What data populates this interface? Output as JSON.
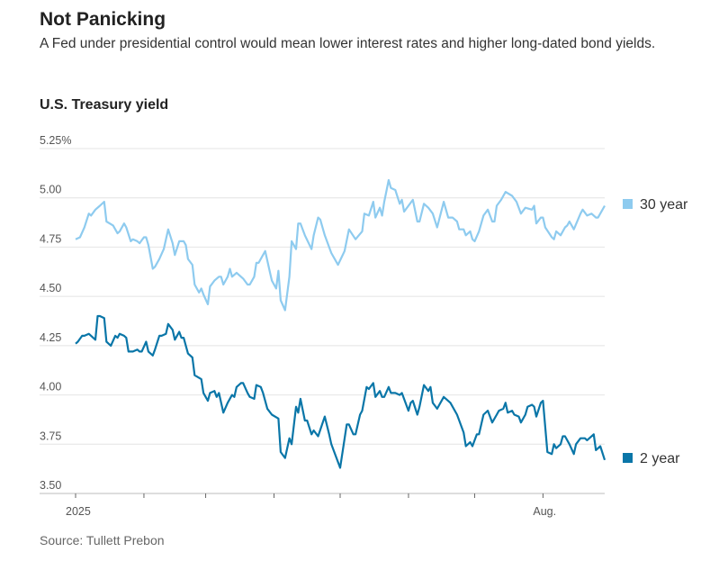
{
  "header": {
    "title": "Not Panicking",
    "subtitle": "A Fed under presidential control would mean lower interest rates and higher long-dated bond yields."
  },
  "source": "Source: Tullett Prebon",
  "chart_data": {
    "type": "line",
    "title": "U.S. Treasury yield",
    "xlabel": "",
    "ylabel": "",
    "x_unit": "days since Jan 1, 2025",
    "xlim": [
      0,
      240
    ],
    "ylim": [
      3.5,
      5.25
    ],
    "y_ticks": [
      {
        "v": 5.25,
        "label": "5.25%"
      },
      {
        "v": 5.0,
        "label": "5.00"
      },
      {
        "v": 4.75,
        "label": "4.75"
      },
      {
        "v": 4.5,
        "label": "4.50"
      },
      {
        "v": 4.25,
        "label": "4.25"
      },
      {
        "v": 4.0,
        "label": "4.00"
      },
      {
        "v": 3.75,
        "label": "3.75"
      },
      {
        "v": 3.5,
        "label": "3.50"
      }
    ],
    "x_ticks": [
      {
        "d": 0,
        "label": "2025"
      },
      {
        "d": 31,
        "label": ""
      },
      {
        "d": 59,
        "label": ""
      },
      {
        "d": 90,
        "label": ""
      },
      {
        "d": 120,
        "label": ""
      },
      {
        "d": 151,
        "label": ""
      },
      {
        "d": 181,
        "label": ""
      },
      {
        "d": 212,
        "label": "Aug."
      }
    ],
    "grid": true,
    "legend": "right, at line ends",
    "series": [
      {
        "name": "30 year",
        "color": "#8ecbef",
        "x": [
          0,
          2,
          4,
          6,
          7,
          9,
          11,
          13,
          14,
          17,
          19,
          20,
          22,
          23,
          25,
          26,
          28,
          29,
          31,
          32,
          33,
          35,
          36,
          38,
          40,
          42,
          44,
          45,
          47,
          49,
          50,
          51,
          53,
          54,
          56,
          57,
          58,
          60,
          61,
          63,
          65,
          66,
          67,
          69,
          70,
          71,
          73,
          75,
          76,
          78,
          79,
          81,
          82,
          83,
          86,
          88,
          89,
          91,
          92,
          93,
          95,
          97,
          98,
          100,
          101,
          102,
          104,
          107,
          108,
          110,
          111,
          113,
          116,
          119,
          122,
          124,
          127,
          130,
          131,
          133,
          135,
          136,
          138,
          139,
          140,
          142,
          143,
          145,
          147,
          148,
          149,
          153,
          155,
          156,
          158,
          160,
          162,
          164,
          167,
          169,
          171,
          173,
          174,
          176,
          177,
          179,
          180,
          181,
          183,
          185,
          187,
          189,
          190,
          191,
          193,
          195,
          198,
          200,
          202,
          204,
          207,
          208,
          209,
          211,
          212,
          213,
          216,
          217,
          218,
          220,
          222,
          223,
          224,
          226,
          229,
          230,
          232,
          234,
          236,
          237,
          240
        ],
        "y": [
          4.79,
          4.8,
          4.85,
          4.92,
          4.91,
          4.94,
          4.96,
          4.98,
          4.88,
          4.86,
          4.82,
          4.83,
          4.87,
          4.85,
          4.78,
          4.79,
          4.78,
          4.77,
          4.8,
          4.8,
          4.76,
          4.64,
          4.65,
          4.69,
          4.74,
          4.84,
          4.77,
          4.71,
          4.78,
          4.78,
          4.76,
          4.69,
          4.66,
          4.56,
          4.52,
          4.54,
          4.51,
          4.46,
          4.55,
          4.58,
          4.6,
          4.6,
          4.56,
          4.6,
          4.64,
          4.6,
          4.62,
          4.6,
          4.59,
          4.56,
          4.56,
          4.6,
          4.67,
          4.67,
          4.73,
          4.63,
          4.58,
          4.54,
          4.63,
          4.48,
          4.43,
          4.6,
          4.78,
          4.74,
          4.87,
          4.87,
          4.81,
          4.74,
          4.81,
          4.9,
          4.89,
          4.81,
          4.72,
          4.66,
          4.73,
          4.84,
          4.79,
          4.83,
          4.92,
          4.91,
          4.98,
          4.9,
          4.95,
          4.91,
          4.98,
          5.09,
          5.05,
          5.04,
          4.97,
          4.99,
          4.93,
          4.99,
          4.88,
          4.88,
          4.97,
          4.95,
          4.92,
          4.85,
          4.98,
          4.9,
          4.9,
          4.88,
          4.84,
          4.84,
          4.81,
          4.83,
          4.79,
          4.78,
          4.83,
          4.91,
          4.94,
          4.88,
          4.88,
          4.96,
          4.99,
          5.03,
          5.01,
          4.98,
          4.92,
          4.95,
          4.94,
          4.96,
          4.87,
          4.9,
          4.9,
          4.85,
          4.8,
          4.79,
          4.83,
          4.81,
          4.85,
          4.86,
          4.88,
          4.84,
          4.92,
          4.94,
          4.91,
          4.92,
          4.9,
          4.9,
          4.96
        ]
      },
      {
        "name": "2 year",
        "color": "#0a76a8",
        "x": [
          0,
          1,
          3,
          4,
          6,
          7,
          9,
          10,
          11,
          13,
          14,
          16,
          18,
          19,
          20,
          22,
          23,
          24,
          26,
          28,
          29,
          30,
          32,
          33,
          35,
          36,
          38,
          39,
          41,
          42,
          44,
          45,
          47,
          48,
          49,
          51,
          53,
          54,
          57,
          58,
          60,
          61,
          63,
          64,
          65,
          67,
          69,
          71,
          72,
          73,
          75,
          76,
          78,
          79,
          81,
          82,
          84,
          85,
          87,
          89,
          92,
          93,
          95,
          97,
          98,
          100,
          101,
          102,
          104,
          105,
          107,
          108,
          110,
          113,
          115,
          116,
          120,
          123,
          124,
          126,
          127,
          129,
          130,
          132,
          133,
          135,
          136,
          138,
          139,
          140,
          142,
          143,
          145,
          147,
          148,
          151,
          152,
          153,
          155,
          156,
          158,
          160,
          161,
          162,
          164,
          167,
          170,
          173,
          176,
          177,
          179,
          180,
          182,
          183,
          185,
          187,
          189,
          191,
          192,
          194,
          195,
          196,
          198,
          199,
          201,
          202,
          204,
          205,
          207,
          208,
          209,
          211,
          212,
          214,
          216,
          217,
          218,
          220,
          221,
          222,
          224,
          226,
          227,
          229,
          231,
          232,
          233,
          235,
          236,
          238,
          240
        ],
        "y": [
          4.26,
          4.27,
          4.3,
          4.3,
          4.31,
          4.3,
          4.28,
          4.4,
          4.4,
          4.39,
          4.27,
          4.25,
          4.3,
          4.29,
          4.31,
          4.3,
          4.29,
          4.22,
          4.22,
          4.23,
          4.22,
          4.22,
          4.27,
          4.22,
          4.2,
          4.23,
          4.3,
          4.3,
          4.31,
          4.36,
          4.33,
          4.28,
          4.32,
          4.29,
          4.29,
          4.21,
          4.19,
          4.1,
          4.08,
          4.01,
          3.97,
          4.01,
          4.02,
          3.99,
          4.01,
          3.91,
          3.96,
          4.0,
          3.99,
          4.04,
          4.06,
          4.06,
          4.01,
          3.99,
          3.98,
          4.05,
          4.04,
          4.01,
          3.93,
          3.9,
          3.88,
          3.71,
          3.68,
          3.78,
          3.75,
          3.94,
          3.91,
          3.98,
          3.87,
          3.87,
          3.8,
          3.82,
          3.79,
          3.89,
          3.8,
          3.75,
          3.63,
          3.85,
          3.85,
          3.8,
          3.8,
          3.9,
          3.92,
          4.04,
          4.03,
          4.06,
          3.99,
          4.02,
          3.99,
          3.99,
          4.04,
          4.01,
          4.01,
          4.0,
          4.01,
          3.92,
          3.96,
          3.97,
          3.9,
          3.94,
          4.05,
          4.02,
          4.04,
          3.96,
          3.93,
          3.99,
          3.96,
          3.9,
          3.81,
          3.74,
          3.76,
          3.74,
          3.8,
          3.8,
          3.9,
          3.92,
          3.86,
          3.9,
          3.92,
          3.93,
          3.96,
          3.91,
          3.92,
          3.9,
          3.89,
          3.86,
          3.9,
          3.94,
          3.95,
          3.94,
          3.89,
          3.96,
          3.97,
          3.71,
          3.7,
          3.75,
          3.73,
          3.75,
          3.79,
          3.79,
          3.75,
          3.7,
          3.75,
          3.78,
          3.78,
          3.77,
          3.78,
          3.8,
          3.72,
          3.74,
          3.67
        ]
      }
    ]
  }
}
